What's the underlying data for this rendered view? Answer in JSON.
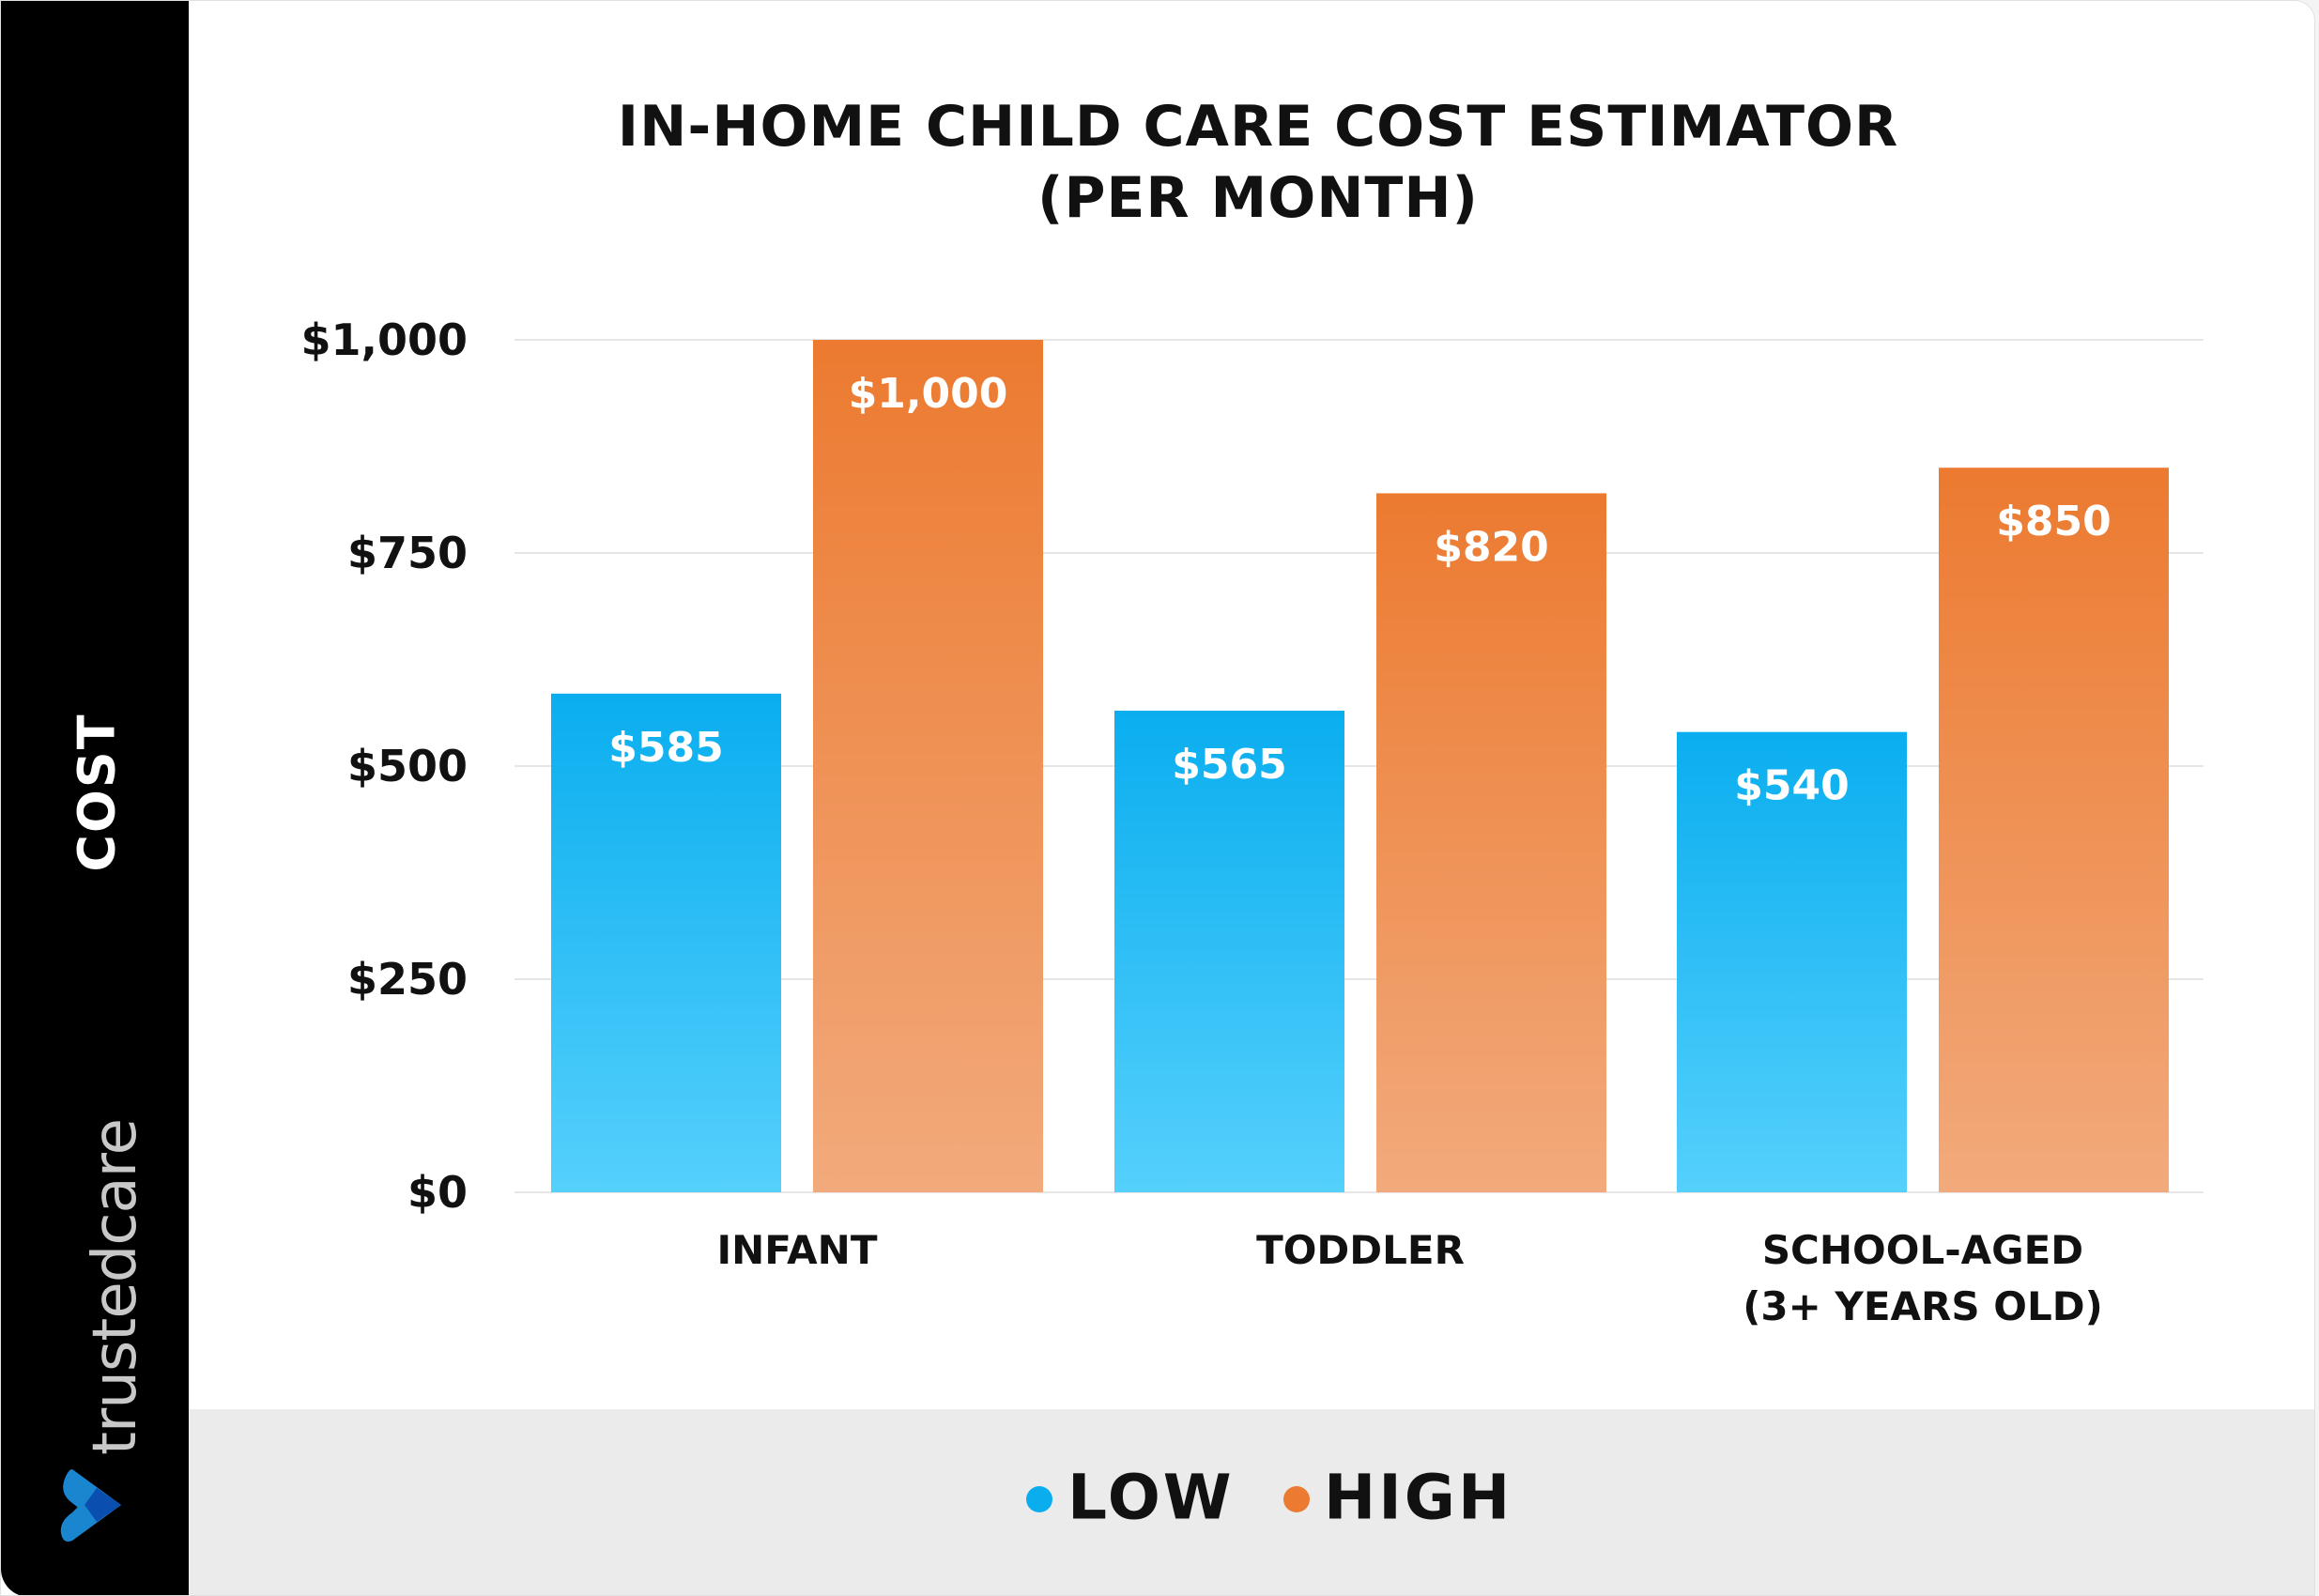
{
  "chart_data": {
    "type": "bar",
    "title": "IN-HOME CHILD CARE COST ESTIMATOR",
    "subtitle": "(PER MONTH)",
    "ylabel": "COST",
    "xlabel": "",
    "ylim": [
      0,
      1000
    ],
    "yticks": [
      0,
      250,
      500,
      750,
      1000
    ],
    "ytick_labels": [
      "$0",
      "$250",
      "$500",
      "$750",
      "$1,000"
    ],
    "categories": [
      [
        "INFANT"
      ],
      [
        "TODDLER"
      ],
      [
        "SCHOOL-AGED",
        "(3+ YEARS OLD)"
      ]
    ],
    "series": [
      {
        "name": "LOW",
        "values": [
          585,
          565,
          540
        ],
        "labels": [
          "$585",
          "$565",
          "$540"
        ],
        "color": "#0aaeef",
        "color_light": "#55d0fc"
      },
      {
        "name": "HIGH",
        "values": [
          1000,
          820,
          850
        ],
        "labels": [
          "$1,000",
          "$820",
          "$850"
        ],
        "color": "#ec7a30",
        "color_light": "#f2aa7c"
      }
    ],
    "grid": true,
    "legend": "bottom"
  },
  "brand": {
    "name": "trustedcare",
    "logo_icon": "heart-chevron-icon"
  }
}
